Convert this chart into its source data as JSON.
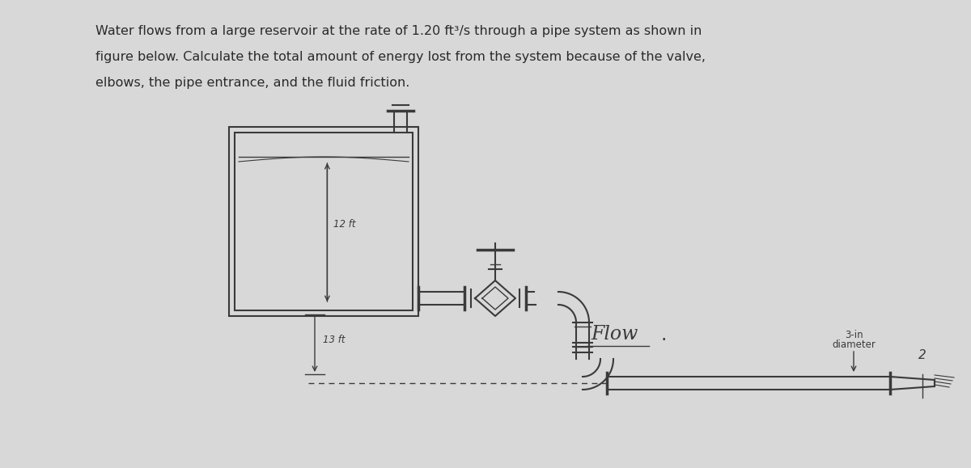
{
  "bg_color": "#d8d8d8",
  "text_color": "#2a2a2a",
  "line_color": "#3a3a3a",
  "title_lines": [
    "Water flows from a large reservoir at the rate of 1.20 ft³/s through a pipe system as shown in",
    "figure below. Calculate the total amount of energy lost from the system because of the valve,",
    "elbows, the pipe entrance, and the fluid friction."
  ],
  "label_12ft": "12 ft",
  "label_13ft": "13 ft",
  "label_3in": "3-in",
  "label_diameter": "diameter",
  "label_flow": "Flow",
  "label_2": "2",
  "title_fontsize": 11.5,
  "diagram_fontsize": 8.5
}
